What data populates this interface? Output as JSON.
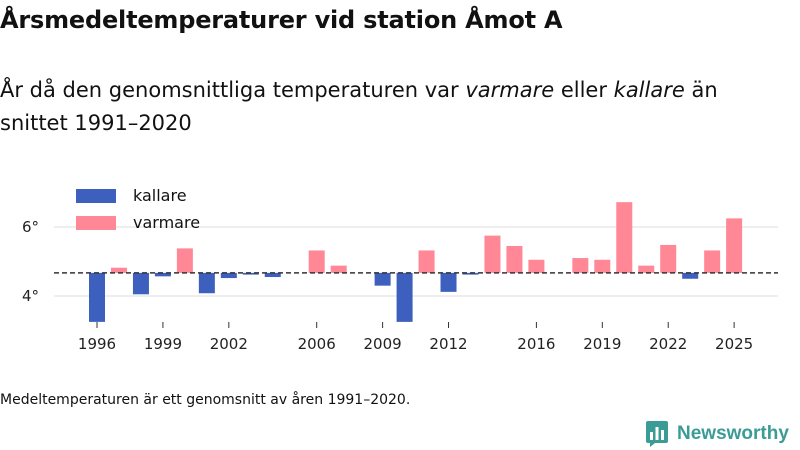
{
  "header": {
    "title": "Årsmedeltemperaturer vid station Åmot A",
    "subtitle_prefix": "År då den genomsnittliga temperaturen var ",
    "subtitle_warm": "varmare",
    "subtitle_mid": " eller ",
    "subtitle_cold": "kallare",
    "subtitle_suffix": " än snittet 1991–2020"
  },
  "legend": {
    "cold_label": "kallare",
    "warm_label": "varmare"
  },
  "colors": {
    "cold": "#3d5fbd",
    "warm": "#ff8796",
    "baseline": "#333333",
    "grid": "#dddddd",
    "brand": "#3b9c96"
  },
  "footnote": "Medeltemperaturen är ett genomsnitt av åren 1991–2020.",
  "brand": {
    "name": "Newsworthy",
    "logo_icon": "bar-chart-badge-icon"
  },
  "chart_data": {
    "type": "bar",
    "title": "Årsmedeltemperaturer vid station Åmot A",
    "xlabel": "",
    "ylabel": "",
    "baseline": 4.67,
    "ylim": [
      3.2,
      7.2
    ],
    "yticks": [
      4,
      6
    ],
    "ytick_labels": [
      "4°",
      "6°"
    ],
    "xticks": [
      1996,
      1999,
      2002,
      2006,
      2009,
      2012,
      2016,
      2019,
      2022,
      2025
    ],
    "categories": [
      1996,
      1997,
      1998,
      1999,
      2000,
      2001,
      2002,
      2003,
      2004,
      2005,
      2006,
      2007,
      2008,
      2009,
      2010,
      2011,
      2012,
      2013,
      2014,
      2015,
      2016,
      2017,
      2018,
      2019,
      2020,
      2021,
      2022,
      2023,
      2024,
      2025
    ],
    "values": [
      3.25,
      4.82,
      4.05,
      4.57,
      5.38,
      4.08,
      4.52,
      4.62,
      4.55,
      null,
      5.32,
      4.88,
      null,
      4.3,
      3.25,
      5.32,
      4.12,
      4.62,
      5.75,
      5.45,
      5.05,
      null,
      5.1,
      5.05,
      6.72,
      4.88,
      5.48,
      4.5,
      5.32,
      6.25
    ],
    "legend": [
      "kallare",
      "varmare"
    ],
    "legend_position": "top-left"
  }
}
